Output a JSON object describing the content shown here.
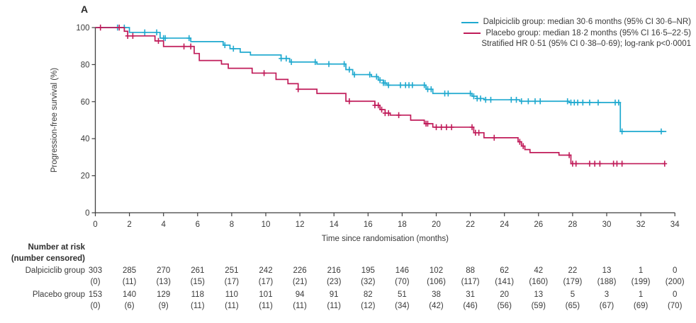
{
  "figure_label": "A",
  "chart_data": {
    "type": "line",
    "subtype": "kaplan-meier-step",
    "xlabel": "Time since randomisation (months)",
    "ylabel": "Progression-free survival (%)",
    "xlim": [
      0,
      34
    ],
    "ylim": [
      0,
      100
    ],
    "x_ticks": [
      0,
      2,
      4,
      6,
      8,
      10,
      12,
      14,
      16,
      18,
      20,
      22,
      24,
      26,
      28,
      30,
      32,
      34
    ],
    "y_ticks": [
      0,
      20,
      40,
      60,
      80,
      100
    ],
    "grid": "off",
    "legend_position": "top-right",
    "annotation": "Stratified HR 0·51 (95% CI 0·38–0·69); log-rank p<0·0001",
    "series": [
      {
        "name": "Dalpiciclib group",
        "color": "#1FA9CF",
        "legend_label": "Dalpiciclib group: median 30·6 months (95% CI 30·6–NR)",
        "median_months": "30·6",
        "ci": "30·6–NR",
        "steps": [
          [
            0,
            100
          ],
          [
            2,
            97.4
          ],
          [
            3.8,
            94.3
          ],
          [
            5.6,
            92.4
          ],
          [
            7.5,
            90.5
          ],
          [
            7.9,
            88.6
          ],
          [
            8.5,
            86.7
          ],
          [
            9.1,
            85.2
          ],
          [
            10.9,
            83.3
          ],
          [
            11.4,
            81.4
          ],
          [
            13,
            80.3
          ],
          [
            14.7,
            77.3
          ],
          [
            15.1,
            74.6
          ],
          [
            16.2,
            73.5
          ],
          [
            16.6,
            71.6
          ],
          [
            16.9,
            70.1
          ],
          [
            17.1,
            68.9
          ],
          [
            19.4,
            66.7
          ],
          [
            19.8,
            64.4
          ],
          [
            22.1,
            62.9
          ],
          [
            22.4,
            61.7
          ],
          [
            22.8,
            61
          ],
          [
            24.9,
            60.2
          ],
          [
            27.8,
            59.5
          ],
          [
            30.8,
            43.9
          ]
        ],
        "end_time": 33.5,
        "censor_times": [
          1.3,
          1.7,
          2.9,
          3.6,
          4,
          4.1,
          5.5,
          7.6,
          8.1,
          10.9,
          11.2,
          11.5,
          12.9,
          13.7,
          14.6,
          14.9,
          15.2,
          16.1,
          16.5,
          16.7,
          16.9,
          17,
          17.2,
          17.9,
          18.2,
          18.4,
          18.6,
          19.3,
          19.5,
          19.7,
          20.5,
          20.7,
          22,
          22.2,
          22.4,
          22.6,
          22.9,
          23.2,
          24.4,
          24.7,
          25,
          25.4,
          25.8,
          26.1,
          27.7,
          27.9,
          28.1,
          28.3,
          28.6,
          29,
          29.5,
          30.5,
          30.7,
          30.9,
          33.2
        ]
      },
      {
        "name": "Placebo group",
        "color": "#C01B59",
        "legend_label": "Placebo group: median 18·2 months (95% CI 16·5–22·5)",
        "median_months": "18·2",
        "ci": "16·5–22·5",
        "steps": [
          [
            0,
            100
          ],
          [
            1.7,
            98
          ],
          [
            1.9,
            95.5
          ],
          [
            3.5,
            92.8
          ],
          [
            4,
            89.8
          ],
          [
            5.8,
            86
          ],
          [
            6.1,
            82.2
          ],
          [
            7.4,
            80.3
          ],
          [
            7.8,
            78
          ],
          [
            9.2,
            75.4
          ],
          [
            10.6,
            72
          ],
          [
            11.3,
            69.7
          ],
          [
            11.9,
            66.7
          ],
          [
            13,
            64.4
          ],
          [
            14.7,
            60.2
          ],
          [
            16.4,
            58
          ],
          [
            16.7,
            55.7
          ],
          [
            17,
            53.8
          ],
          [
            17.3,
            52.7
          ],
          [
            18.5,
            50
          ],
          [
            19.3,
            48.1
          ],
          [
            19.8,
            46.2
          ],
          [
            22.2,
            43.2
          ],
          [
            22.8,
            40.5
          ],
          [
            24.8,
            38.3
          ],
          [
            25,
            36
          ],
          [
            25.2,
            34.1
          ],
          [
            25.5,
            32.5
          ],
          [
            27.2,
            31.1
          ],
          [
            27.9,
            26.5
          ]
        ],
        "end_time": 33.4,
        "censor_times": [
          0.3,
          1.4,
          1.9,
          2.2,
          3.7,
          5.2,
          5.6,
          9.9,
          11.9,
          14.9,
          16.4,
          16.6,
          16.8,
          17,
          17.2,
          17.8,
          19.4,
          19.5,
          20,
          20.3,
          20.6,
          20.9,
          22.1,
          22.3,
          22.5,
          23.4,
          24.9,
          25.1,
          27.8,
          28,
          28.2,
          29,
          29.3,
          29.6,
          30.4,
          30.6,
          30.9,
          33.4
        ]
      }
    ]
  },
  "risk_table": {
    "title": "Number at risk",
    "subtitle": "(number censored)",
    "rows": [
      {
        "label": "Dalpiciclib group",
        "counts": [
          "303",
          "285",
          "270",
          "261",
          "251",
          "242",
          "226",
          "216",
          "195",
          "146",
          "102",
          "88",
          "62",
          "42",
          "22",
          "13",
          "1",
          "0"
        ],
        "censored": [
          "(0)",
          "(11)",
          "(13)",
          "(15)",
          "(17)",
          "(17)",
          "(21)",
          "(23)",
          "(32)",
          "(70)",
          "(106)",
          "(117)",
          "(141)",
          "(160)",
          "(179)",
          "(188)",
          "(199)",
          "(200)"
        ]
      },
      {
        "label": "Placebo group",
        "counts": [
          "153",
          "140",
          "129",
          "118",
          "110",
          "101",
          "94",
          "91",
          "82",
          "51",
          "38",
          "31",
          "20",
          "13",
          "5",
          "3",
          "1",
          "0"
        ],
        "censored": [
          "(0)",
          "(6)",
          "(9)",
          "(11)",
          "(11)",
          "(11)",
          "(11)",
          "(11)",
          "(12)",
          "(34)",
          "(42)",
          "(46)",
          "(56)",
          "(59)",
          "(65)",
          "(67)",
          "(69)",
          "(70)"
        ]
      }
    ]
  }
}
